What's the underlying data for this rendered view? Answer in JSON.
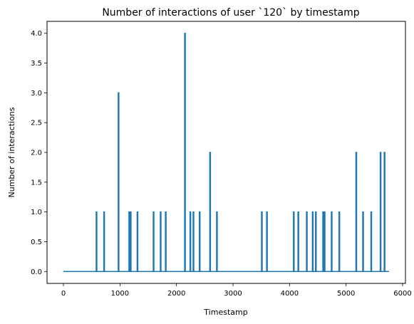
{
  "chart_data": {
    "type": "line",
    "title": "Number of interactions of user `120` by timestamp",
    "xlabel": "Timestamp",
    "ylabel": "Number of interactions",
    "xlim": [
      -290,
      6050
    ],
    "ylim": [
      -0.2,
      4.2
    ],
    "xticks": [
      0,
      1000,
      2000,
      3000,
      4000,
      5000,
      6000
    ],
    "xtick_labels": [
      "0",
      "1000",
      "2000",
      "3000",
      "4000",
      "5000",
      "6000"
    ],
    "yticks": [
      0.0,
      0.5,
      1.0,
      1.5,
      2.0,
      2.5,
      3.0,
      3.5,
      4.0
    ],
    "ytick_labels": [
      "0.0",
      "0.5",
      "1.0",
      "1.5",
      "2.0",
      "2.5",
      "3.0",
      "3.5",
      "4.0"
    ],
    "grid": false,
    "baseline": 0,
    "x_range": [
      0,
      5760
    ],
    "series": [
      {
        "color": "#1f77b4",
        "spikes": [
          {
            "x": 585,
            "y": 1
          },
          {
            "x": 720,
            "y": 1
          },
          {
            "x": 975,
            "y": 3
          },
          {
            "x": 1165,
            "y": 1
          },
          {
            "x": 1190,
            "y": 1
          },
          {
            "x": 1310,
            "y": 1
          },
          {
            "x": 1595,
            "y": 1
          },
          {
            "x": 1720,
            "y": 1
          },
          {
            "x": 1810,
            "y": 1
          },
          {
            "x": 2150,
            "y": 4
          },
          {
            "x": 2245,
            "y": 1
          },
          {
            "x": 2300,
            "y": 1
          },
          {
            "x": 2410,
            "y": 1
          },
          {
            "x": 2595,
            "y": 2
          },
          {
            "x": 2715,
            "y": 1
          },
          {
            "x": 3510,
            "y": 1
          },
          {
            "x": 3600,
            "y": 1
          },
          {
            "x": 4075,
            "y": 1
          },
          {
            "x": 4155,
            "y": 1
          },
          {
            "x": 4305,
            "y": 1
          },
          {
            "x": 4410,
            "y": 1
          },
          {
            "x": 4465,
            "y": 1
          },
          {
            "x": 4595,
            "y": 1
          },
          {
            "x": 4620,
            "y": 1
          },
          {
            "x": 4745,
            "y": 1
          },
          {
            "x": 4880,
            "y": 1
          },
          {
            "x": 5180,
            "y": 2
          },
          {
            "x": 5300,
            "y": 1
          },
          {
            "x": 5445,
            "y": 1
          },
          {
            "x": 5610,
            "y": 2
          },
          {
            "x": 5680,
            "y": 2
          }
        ]
      }
    ]
  }
}
